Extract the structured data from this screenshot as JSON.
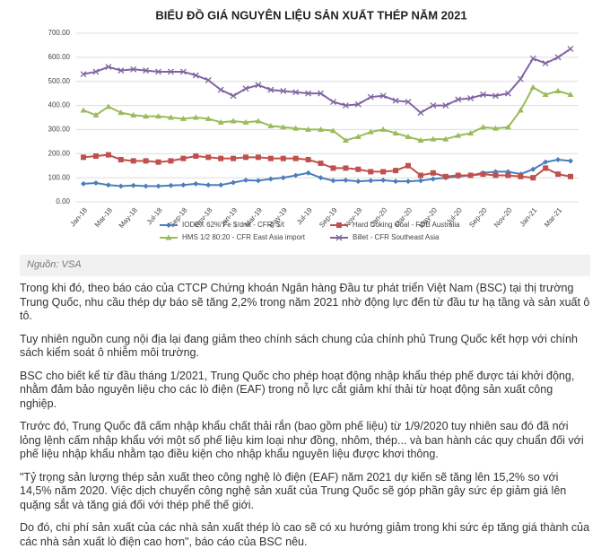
{
  "chart_data": {
    "type": "line",
    "title": "BIỂU ĐỒ GIÁ NGUYÊN LIỆU SẢN XUẤT THÉP NĂM 2021",
    "categories": [
      "Jan-18",
      null,
      "Mar-18",
      null,
      "May-18",
      null,
      "Jul-18",
      null,
      "Sep-18",
      null,
      "Nov-18",
      null,
      "Jan-19",
      null,
      "Mar-19",
      null,
      "May-19",
      null,
      "Jul-19",
      null,
      "Sep-19",
      null,
      "Nov-19",
      null,
      "Jan-20",
      null,
      "Mar-20",
      null,
      "May-20",
      null,
      "Jul-20",
      null,
      "Sep-20",
      null,
      "Nov-20",
      null,
      "Jan-21",
      null,
      "Mar-21",
      null
    ],
    "ylim": [
      0,
      700
    ],
    "yticks": [
      {
        "value": 0,
        "label": "0.00"
      },
      {
        "value": 100,
        "label": "100.00"
      },
      {
        "value": 200,
        "label": "200.00"
      },
      {
        "value": 300,
        "label": "300.00"
      },
      {
        "value": 400,
        "label": "400.00"
      },
      {
        "value": 500,
        "label": "500.00"
      },
      {
        "value": 600,
        "label": "600.00"
      },
      {
        "value": 700,
        "label": "700.00"
      }
    ],
    "grid": true,
    "series": [
      {
        "name": "IODEX 62% Fe $/dmt - CFR, $/t",
        "color": "#4a7ebb",
        "marker": "diamond",
        "values": [
          75,
          78,
          70,
          65,
          68,
          65,
          65,
          68,
          70,
          75,
          70,
          70,
          80,
          90,
          88,
          95,
          100,
          110,
          120,
          100,
          88,
          90,
          85,
          88,
          90,
          85,
          85,
          88,
          95,
          100,
          105,
          110,
          120,
          125,
          125,
          115,
          135,
          165,
          175,
          170
        ]
      },
      {
        "name": "Hard Coking Coal - FOB Australia",
        "color": "#c0504d",
        "marker": "square",
        "values": [
          185,
          190,
          195,
          175,
          170,
          170,
          165,
          170,
          180,
          190,
          185,
          180,
          180,
          185,
          185,
          180,
          180,
          180,
          175,
          160,
          140,
          140,
          135,
          125,
          125,
          130,
          150,
          110,
          120,
          105,
          110,
          110,
          115,
          110,
          110,
          105,
          100,
          140,
          115,
          105
        ]
      },
      {
        "name": "HMS 1/2 80:20 - CFR East Asia import",
        "color": "#9bbb59",
        "marker": "triangle",
        "values": [
          380,
          360,
          395,
          370,
          360,
          355,
          355,
          350,
          345,
          350,
          345,
          330,
          335,
          330,
          335,
          315,
          310,
          305,
          300,
          300,
          295,
          255,
          270,
          290,
          300,
          285,
          270,
          255,
          260,
          260,
          275,
          285,
          310,
          305,
          310,
          380,
          475,
          445,
          460,
          445
        ]
      },
      {
        "name": "Billet - CFR Southeast Asia",
        "color": "#8064a2",
        "marker": "x",
        "values": [
          530,
          540,
          560,
          545,
          550,
          545,
          540,
          540,
          540,
          525,
          505,
          465,
          440,
          470,
          485,
          465,
          460,
          455,
          450,
          450,
          415,
          400,
          405,
          435,
          440,
          420,
          415,
          370,
          400,
          400,
          425,
          430,
          445,
          440,
          450,
          510,
          595,
          575,
          600,
          635
        ]
      }
    ]
  },
  "source": "Nguồn: VSA",
  "paragraphs": [
    "Trong khi đó, theo báo cáo của CTCP Chứng khoán Ngân hàng Đầu tư phát triển Việt Nam (BSC) tại thị trường Trung Quốc, nhu cầu thép dự báo sẽ tăng 2,2% trong năm 2021 nhờ động lực đến từ đầu tư hạ tầng và sản xuất ô tô.",
    "Tuy nhiên nguồn cung nội địa lại đang giảm theo chính sách chung của chính phủ Trung Quốc kết hợp với chính sách kiểm soát ô nhiễm môi trường.",
    "BSC cho biết kể từ đầu tháng 1/2021, Trung Quốc cho phép hoạt động nhập khẩu thép phế được tái khởi động, nhằm đảm bảo nguyên liệu cho các lò điện (EAF) trong nỗ lực cắt giảm khí thải từ hoạt động sản xuất công nghiệp.",
    "Trước đó, Trung Quốc đã cấm nhập khẩu chất thải rắn (bao gồm phế liệu) từ 1/9/2020 tuy nhiên sau đó đã nới lỏng lệnh cấm nhập khẩu với một số phế liệu kim loại như đồng, nhôm, thép... và ban hành các quy chuẩn đối với phế liệu nhập khẩu nhằm tạo điều kiện cho nhập khẩu nguyên liệu được khơi thông.",
    "\"Tỷ trọng sản lượng thép sản xuất theo công nghệ lò điện (EAF) năm 2021 dự kiến sẽ tăng lên 15,2% so với 14,5% năm 2020. Việc dịch chuyển công nghệ sản xuất của Trung Quốc sẽ góp phần gây sức ép giảm giá lên quặng sắt và tăng giá đối với thép phế thế giới.",
    "Do đó, chi phí sản xuất của các nhà sản xuất thép lò cao sẽ có xu hướng giảm trong khi sức ép tăng giá thành của các nhà sản xuất lò điện cao hơn\", báo cáo của BSC nêu."
  ]
}
